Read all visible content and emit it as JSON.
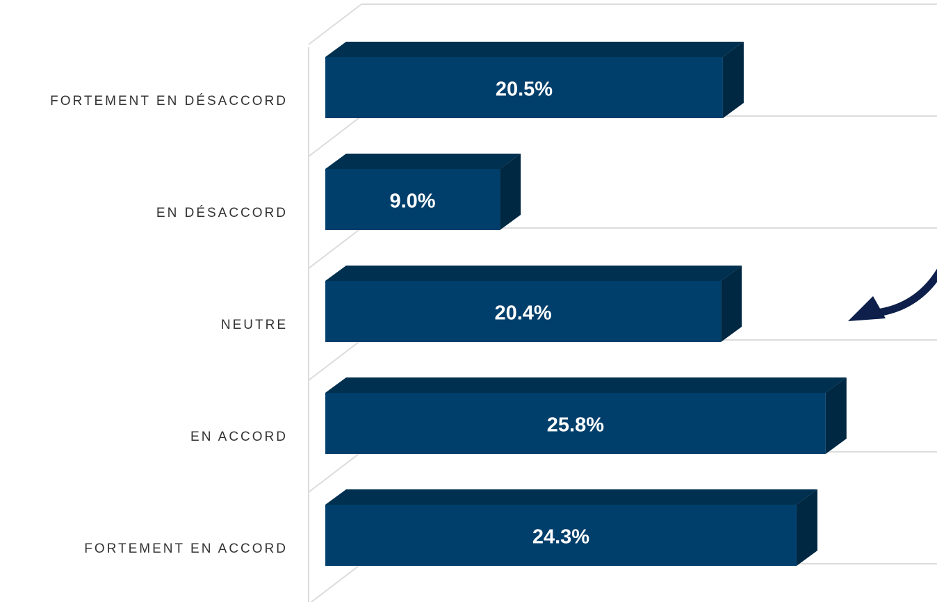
{
  "chart_data": {
    "type": "bar3d",
    "categories": [
      "FORTEMENT EN DÉSACCORD",
      "EN DÉSACCORD",
      "NEUTRE",
      "EN ACCORD",
      "FORTEMENT EN ACCORD"
    ],
    "values": [
      20.5,
      9.0,
      20.4,
      25.8,
      24.3
    ],
    "value_labels": [
      "20.5%",
      "9.0%",
      "20.4%",
      "25.8%",
      "24.3%"
    ],
    "color": "#003f6b"
  }
}
